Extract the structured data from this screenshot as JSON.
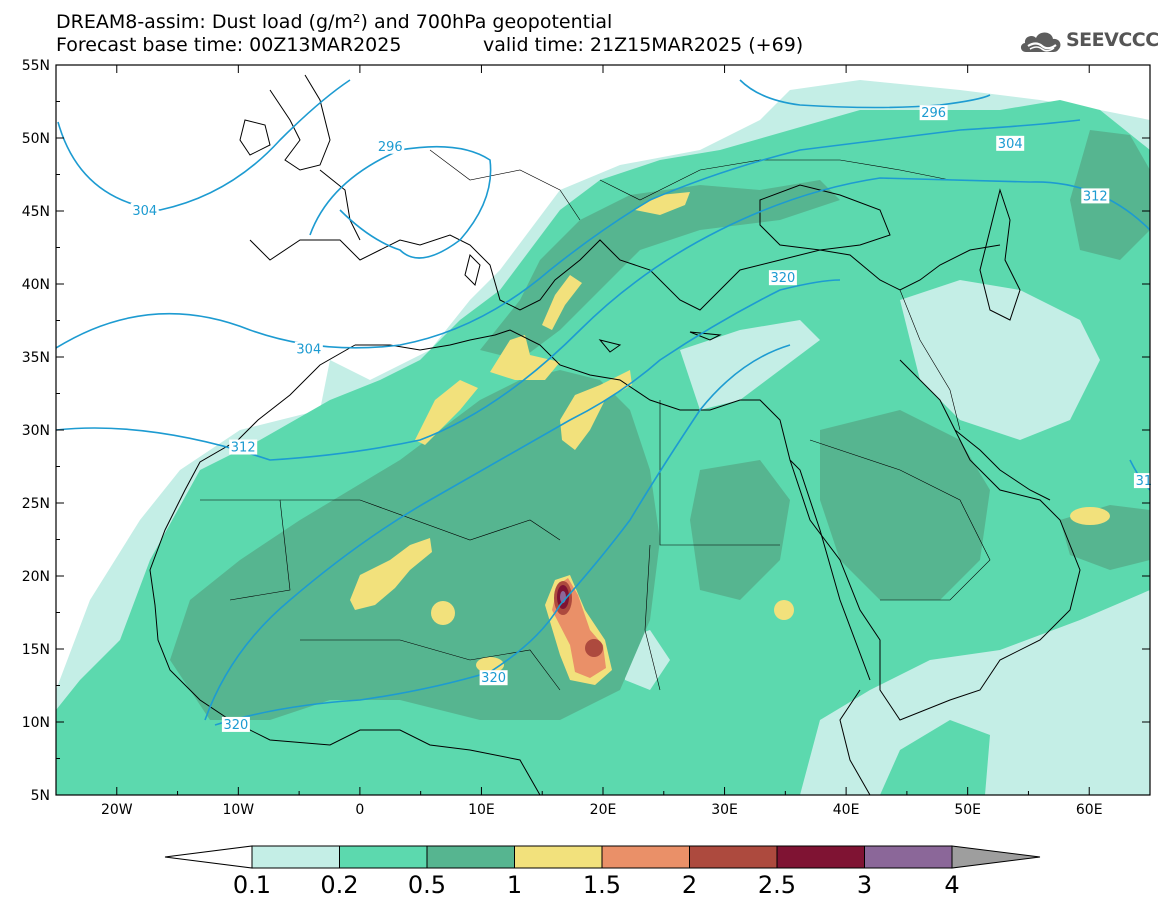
{
  "title": {
    "line1": "DREAM8-assim: Dust load (g/m²) and 700hPa geopotential",
    "line2_left": "Forecast base time: 00Z13MAR2025",
    "line2_right": "valid time: 21Z15MAR2025 (+69)"
  },
  "logo": {
    "text": "SEEVCCC",
    "icon": "cloud-icon"
  },
  "map": {
    "latitude_ticks": [
      "55N",
      "50N",
      "45N",
      "40N",
      "35N",
      "30N",
      "25N",
      "20N",
      "15N",
      "10N",
      "5N"
    ],
    "longitude_ticks": [
      "20W",
      "10W",
      "0",
      "10E",
      "20E",
      "30E",
      "40E",
      "50E",
      "60E"
    ],
    "lon_range": [
      -25,
      65
    ],
    "lat_range": [
      5,
      55
    ],
    "contour_labels": [
      {
        "text": "296",
        "lon": 2.5,
        "lat": 49.4
      },
      {
        "text": "304",
        "lon": -17.7,
        "lat": 45.0
      },
      {
        "text": "296",
        "lon": 47.2,
        "lat": 51.7
      },
      {
        "text": "304",
        "lon": 53.5,
        "lat": 49.6
      },
      {
        "text": "312",
        "lon": 60.5,
        "lat": 46.0
      },
      {
        "text": "320",
        "lon": 34.8,
        "lat": 40.4
      },
      {
        "text": "304",
        "lon": -4.2,
        "lat": 35.5
      },
      {
        "text": "312",
        "lon": -9.6,
        "lat": 28.8
      },
      {
        "text": "31",
        "lon": 64.5,
        "lat": 26.5
      },
      {
        "text": "320",
        "lon": 11.0,
        "lat": 13.0
      },
      {
        "text": "320",
        "lon": -10.2,
        "lat": 9.8
      }
    ]
  },
  "colorbar": {
    "labels": [
      "0.1",
      "0.2",
      "0.5",
      "1",
      "1.5",
      "2",
      "2.5",
      "3",
      "4"
    ],
    "colors": [
      "#c4eee6",
      "#5cd9ae",
      "#56b590",
      "#f2e17c",
      "#ea9068",
      "#ad4a3e",
      "#7f1333",
      "#8b6799"
    ],
    "under_color": "#ffffff",
    "over_color": "#9e9e9e"
  }
}
